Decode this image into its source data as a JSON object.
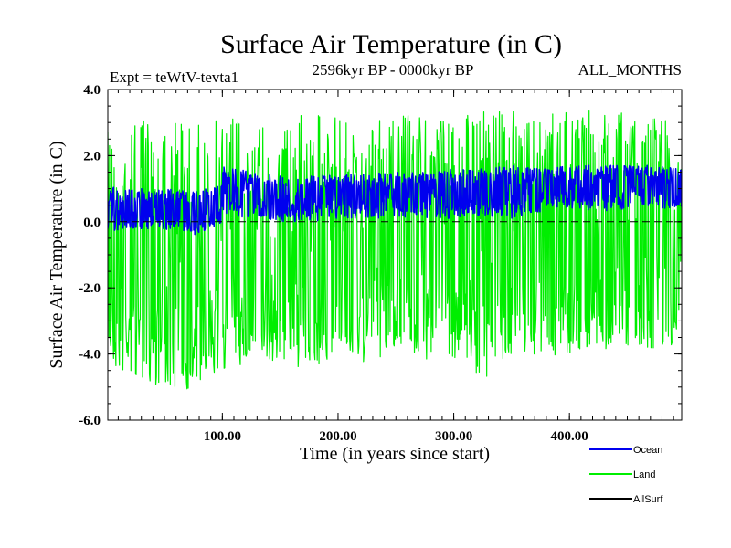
{
  "header": {
    "title": "Surface Air Temperature (in C)",
    "expt": "Expt = teWtV-tevta1",
    "period": "2596kyr BP - 0000kyr BP",
    "months": "ALL_MONTHS"
  },
  "chart_data": {
    "type": "line",
    "title": "Surface Air Temperature (in C)",
    "xlabel": "Time (in years since start)",
    "ylabel": "Surface Air Temperature (in C)",
    "xlim": [
      1,
      497
    ],
    "ylim": [
      -6.0,
      4.0
    ],
    "xticks": [
      100,
      200,
      300,
      400
    ],
    "xtick_labels": [
      "100.00",
      "200.00",
      "300.00",
      "400.00"
    ],
    "yticks": [
      4.0,
      2.0,
      0.0,
      -2.0,
      -4.0,
      -6.0
    ],
    "ytick_labels": [
      "4.0",
      "2.0",
      "0.0",
      "-2.0",
      "-4.0",
      "-6.0"
    ],
    "reference_line": 0.0,
    "series": [
      {
        "name": "Land",
        "color": "#00ee00",
        "note": "annual values, approximate envelope",
        "x": [
          1,
          25,
          50,
          75,
          99,
          101,
          125,
          150,
          175,
          200,
          225,
          250,
          275,
          300,
          325,
          350,
          375,
          400,
          425,
          450,
          475,
          497
        ],
        "mean": [
          -1.3,
          -1.4,
          -1.5,
          -1.5,
          -1.4,
          -1.1,
          -1.1,
          -1.0,
          -1.0,
          -0.9,
          -0.9,
          -0.85,
          -0.85,
          -0.8,
          -0.75,
          -0.7,
          -0.7,
          -0.65,
          -0.6,
          -0.6,
          -0.6,
          -0.6
        ],
        "min": [
          -4.4,
          -4.8,
          -5.0,
          -5.1,
          -4.6,
          -4.5,
          -4.3,
          -4.2,
          -4.5,
          -4.2,
          -4.3,
          -4.0,
          -4.2,
          -4.1,
          -4.8,
          -4.0,
          -4.1,
          -4.0,
          -3.9,
          -3.8,
          -4.0,
          -3.6
        ],
        "max": [
          2.9,
          3.1,
          3.2,
          3.1,
          3.2,
          3.4,
          3.2,
          3.1,
          3.3,
          3.2,
          3.1,
          3.2,
          3.3,
          3.2,
          3.4,
          3.4,
          3.3,
          3.4,
          3.5,
          3.4,
          3.3,
          3.3
        ]
      },
      {
        "name": "Ocean",
        "color": "#0000ee",
        "note": "annual values, approximate envelope",
        "x": [
          1,
          25,
          50,
          75,
          99,
          101,
          125,
          150,
          175,
          200,
          225,
          250,
          275,
          300,
          325,
          350,
          375,
          400,
          425,
          450,
          475,
          497
        ],
        "mean": [
          0.45,
          0.4,
          0.4,
          0.35,
          0.45,
          0.9,
          0.8,
          0.7,
          0.75,
          0.8,
          0.8,
          0.85,
          0.85,
          0.85,
          0.9,
          1.0,
          1.0,
          1.05,
          1.05,
          1.1,
          1.05,
          1.05
        ],
        "min": [
          -0.3,
          -0.2,
          -0.3,
          -0.4,
          -0.1,
          0.2,
          0.1,
          0.0,
          0.0,
          0.1,
          0.1,
          0.1,
          0.1,
          0.1,
          0.2,
          0.1,
          0.3,
          0.4,
          0.3,
          0.4,
          0.4,
          0.4
        ],
        "max": [
          1.1,
          1.0,
          1.0,
          0.9,
          1.1,
          1.7,
          1.5,
          1.4,
          1.4,
          1.4,
          1.5,
          1.5,
          1.5,
          1.6,
          1.6,
          1.7,
          1.6,
          1.7,
          1.7,
          1.7,
          1.7,
          1.6
        ]
      },
      {
        "name": "AllSurf",
        "color": "#000000",
        "note": "largely hidden beneath Ocean trace"
      }
    ],
    "legend": [
      {
        "name": "Ocean",
        "color": "#0000ee"
      },
      {
        "name": "Land",
        "color": "#00ee00"
      },
      {
        "name": "AllSurf",
        "color": "#000000"
      }
    ],
    "legend_position": "bottom-right"
  }
}
